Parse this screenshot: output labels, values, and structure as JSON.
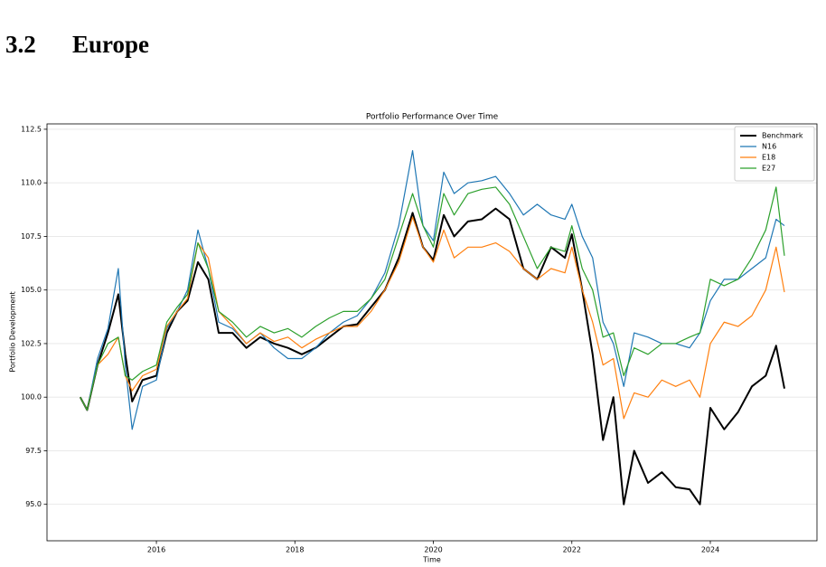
{
  "section": {
    "number": "3.2",
    "title": "Europe"
  },
  "chart_data": {
    "type": "line",
    "title": "Portfolio Performance Over Time",
    "x_label": "Time",
    "y_label": "Portfolio Development",
    "x": [
      2014.9,
      2015.0,
      2015.15,
      2015.3,
      2015.45,
      2015.55,
      2015.65,
      2015.8,
      2016.0,
      2016.15,
      2016.3,
      2016.45,
      2016.6,
      2016.75,
      2016.9,
      2017.1,
      2017.3,
      2017.5,
      2017.7,
      2017.9,
      2018.1,
      2018.3,
      2018.5,
      2018.7,
      2018.9,
      2019.1,
      2019.3,
      2019.5,
      2019.7,
      2019.85,
      2020.0,
      2020.15,
      2020.3,
      2020.5,
      2020.7,
      2020.9,
      2021.1,
      2021.3,
      2021.5,
      2021.7,
      2021.9,
      2022.0,
      2022.15,
      2022.3,
      2022.45,
      2022.6,
      2022.75,
      2022.9,
      2023.1,
      2023.3,
      2023.5,
      2023.7,
      2023.85,
      2024.0,
      2024.2,
      2024.4,
      2024.6,
      2024.8,
      2024.95,
      2025.07
    ],
    "series": [
      {
        "name": "Benchmark",
        "color": "#000000",
        "values": [
          100.0,
          99.4,
          101.5,
          103.0,
          104.8,
          102.0,
          99.8,
          100.8,
          101.0,
          103.0,
          104.0,
          104.5,
          106.3,
          105.5,
          103.0,
          103.0,
          102.3,
          102.8,
          102.5,
          102.3,
          102.0,
          102.3,
          102.8,
          103.3,
          103.4,
          104.2,
          105.0,
          106.5,
          108.6,
          107.0,
          106.4,
          108.5,
          107.5,
          108.2,
          108.3,
          108.8,
          108.3,
          106.0,
          105.5,
          107.0,
          106.5,
          107.6,
          105.0,
          102.0,
          98.0,
          100.0,
          95.0,
          97.5,
          96.0,
          96.5,
          95.8,
          95.7,
          95.0,
          99.5,
          98.5,
          99.3,
          100.5,
          101.0,
          102.4,
          100.4
        ]
      },
      {
        "name": "N16",
        "color": "#1f77b4",
        "values": [
          100.0,
          99.4,
          101.8,
          103.2,
          106.0,
          101.5,
          98.5,
          100.5,
          100.8,
          103.2,
          104.0,
          105.0,
          107.8,
          106.0,
          103.5,
          103.2,
          102.5,
          103.0,
          102.3,
          101.8,
          101.8,
          102.3,
          103.0,
          103.5,
          103.8,
          104.6,
          105.8,
          108.0,
          111.5,
          108.0,
          107.3,
          110.5,
          109.5,
          110.0,
          110.1,
          110.3,
          109.5,
          108.5,
          109.0,
          108.5,
          108.3,
          109.0,
          107.5,
          106.5,
          103.5,
          102.5,
          100.5,
          103.0,
          102.8,
          102.5,
          102.5,
          102.3,
          103.0,
          104.5,
          105.5,
          105.5,
          106.0,
          106.5,
          108.3,
          108.0
        ]
      },
      {
        "name": "E18",
        "color": "#ff7f0e",
        "values": [
          100.0,
          99.4,
          101.5,
          102.0,
          102.8,
          101.0,
          100.3,
          101.0,
          101.3,
          103.3,
          104.0,
          104.6,
          107.2,
          106.5,
          104.0,
          103.3,
          102.5,
          103.0,
          102.6,
          102.8,
          102.3,
          102.7,
          103.0,
          103.3,
          103.3,
          104.0,
          105.0,
          106.3,
          108.4,
          107.0,
          106.3,
          107.8,
          106.5,
          107.0,
          107.0,
          107.2,
          106.8,
          106.0,
          105.5,
          106.0,
          105.8,
          107.0,
          105.0,
          103.5,
          101.5,
          101.8,
          99.0,
          100.2,
          100.0,
          100.8,
          100.5,
          100.8,
          100.0,
          102.5,
          103.5,
          103.3,
          103.8,
          105.0,
          107.0,
          104.9
        ]
      },
      {
        "name": "E27",
        "color": "#2ca02c",
        "values": [
          100.0,
          99.4,
          101.5,
          102.5,
          102.8,
          101.0,
          100.8,
          101.2,
          101.5,
          103.5,
          104.2,
          104.8,
          107.2,
          106.0,
          104.0,
          103.5,
          102.8,
          103.3,
          103.0,
          103.2,
          102.8,
          103.3,
          103.7,
          104.0,
          104.0,
          104.6,
          105.5,
          107.5,
          109.5,
          108.0,
          107.0,
          109.5,
          108.5,
          109.5,
          109.7,
          109.8,
          109.0,
          107.5,
          106.0,
          107.0,
          106.8,
          108.0,
          106.0,
          105.0,
          102.8,
          103.0,
          101.0,
          102.3,
          102.0,
          102.5,
          102.5,
          102.8,
          103.0,
          105.5,
          105.2,
          105.5,
          106.5,
          107.8,
          109.8,
          106.6
        ]
      }
    ],
    "xlim": [
      2014.42,
      2025.54
    ],
    "xticks": [
      2016,
      2018,
      2020,
      2022,
      2024
    ],
    "ylim": [
      93.3,
      112.75
    ],
    "yticks": [
      {
        "value": 95,
        "label": "95.0"
      },
      97.5,
      {
        "value": 100,
        "label": "100.0"
      },
      102.5,
      {
        "value": 105,
        "label": "105.0"
      },
      107.5,
      {
        "value": 110,
        "label": "110.0"
      },
      112.5
    ],
    "grid": true,
    "legend": "upper right"
  }
}
